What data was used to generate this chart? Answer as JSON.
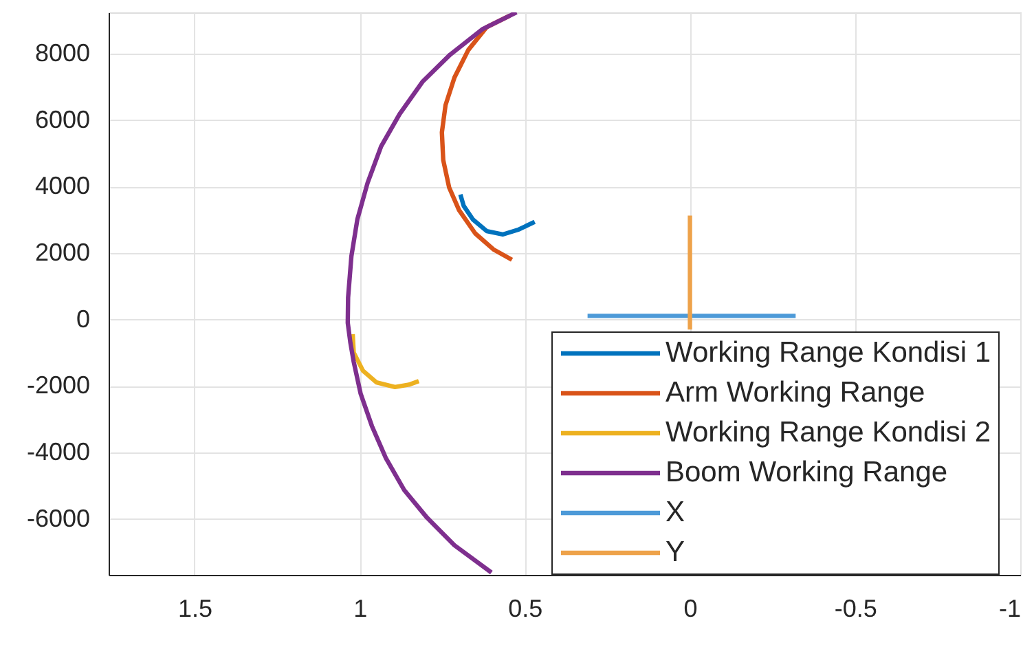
{
  "chart_data": {
    "type": "line",
    "xlim": [
      1.76,
      -1
    ],
    "ylim": [
      -7680,
      9240
    ],
    "xticks": [
      1.5,
      1,
      0.5,
      0,
      -0.5,
      -1
    ],
    "yticks": [
      -6000,
      -4000,
      -2000,
      0,
      2000,
      4000,
      6000,
      8000
    ],
    "grid": true,
    "legend": "bottom right",
    "series": [
      {
        "name": "Working Range Kondisi 1",
        "color": "#0072bd",
        "x": [
          0.695,
          0.685,
          0.657,
          0.615,
          0.567,
          0.518,
          0.47
        ],
        "values": [
          3760,
          3420,
          3010,
          2660,
          2560,
          2710,
          2940
        ]
      },
      {
        "name": "Arm Working Range",
        "color": "#d95319",
        "x": [
          0.546,
          0.615,
          0.671,
          0.713,
          0.74,
          0.751,
          0.747,
          0.729,
          0.699,
          0.65,
          0.595,
          0.539
        ],
        "values": [
          9140,
          8800,
          8110,
          7280,
          6450,
          5630,
          4800,
          3970,
          3290,
          2590,
          2110,
          1800
        ]
      },
      {
        "name": "Working Range Kondisi 2",
        "color": "#edb120",
        "x": [
          1.021,
          1.018,
          0.99,
          0.949,
          0.893,
          0.851,
          0.821
        ],
        "values": [
          -440,
          -990,
          -1540,
          -1890,
          -2030,
          -1960,
          -1850
        ]
      },
      {
        "name": "Boom Working Range",
        "color": "#7e2f8e",
        "x": [
          0.525,
          0.629,
          0.726,
          0.81,
          0.879,
          0.935,
          0.976,
          1.007,
          1.025,
          1.035,
          1.036,
          1.028,
          1.018,
          0.997,
          0.963,
          0.921,
          0.865,
          0.796,
          0.713,
          0.601
        ],
        "values": [
          9240,
          8730,
          7970,
          7150,
          6180,
          5210,
          4110,
          3010,
          1900,
          660,
          -100,
          -700,
          -1270,
          -2230,
          -3200,
          -4160,
          -5130,
          -5960,
          -6790,
          -7610
        ]
      },
      {
        "name": "X",
        "color": "#4d9ad8",
        "x": [
          0.31,
          -0.32
        ],
        "values": [
          110,
          110
        ]
      },
      {
        "name": "Y",
        "color": "#eea24a",
        "x": [
          0.0,
          0.0
        ],
        "values": [
          3130,
          -300
        ]
      }
    ]
  }
}
